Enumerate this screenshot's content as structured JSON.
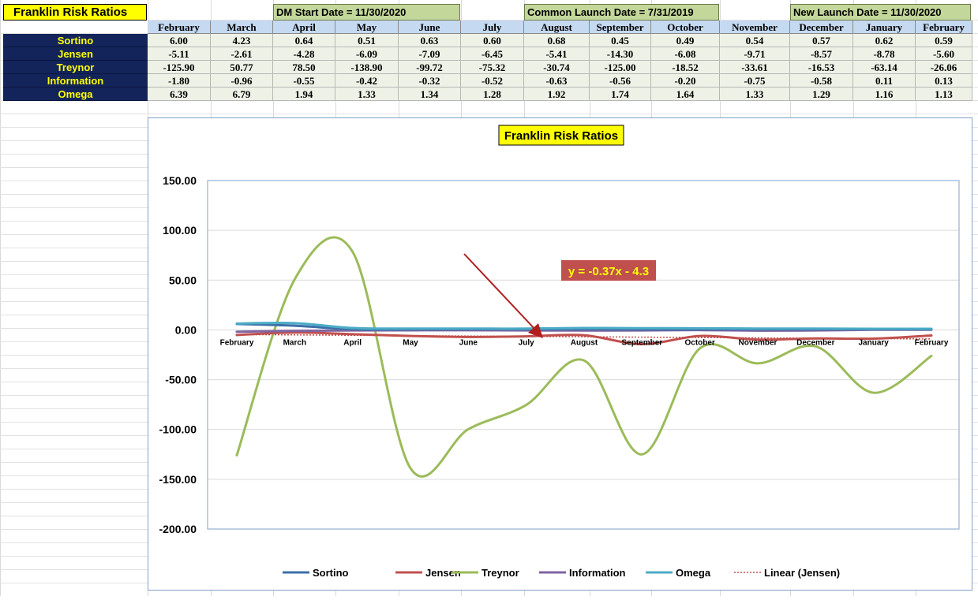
{
  "sheet": {
    "title": "Franklin Risk Ratios",
    "dm_start": "DM Start Date = 11/30/2020",
    "common_launch": "Common Launch Date = 7/31/2019",
    "new_launch": "New Launch Date = 11/30/2020",
    "months": [
      "February",
      "March",
      "April",
      "May",
      "June",
      "July",
      "August",
      "September",
      "October",
      "November",
      "December",
      "January",
      "February"
    ],
    "rows": [
      {
        "label": "Sortino",
        "values": [
          "6.00",
          "4.23",
          "0.64",
          "0.51",
          "0.63",
          "0.60",
          "0.68",
          "0.45",
          "0.49",
          "0.54",
          "0.57",
          "0.62",
          "0.59"
        ]
      },
      {
        "label": "Jensen",
        "values": [
          "-5.11",
          "-2.61",
          "-4.28",
          "-6.09",
          "-7.09",
          "-6.45",
          "-5.41",
          "-14.30",
          "-6.08",
          "-9.71",
          "-8.57",
          "-8.78",
          "-5.60"
        ]
      },
      {
        "label": "Treynor",
        "values": [
          "-125.90",
          "50.77",
          "78.50",
          "-138.90",
          "-99.72",
          "-75.32",
          "-30.74",
          "-125.00",
          "-18.52",
          "-33.61",
          "-16.53",
          "-63.14",
          "-26.06"
        ]
      },
      {
        "label": "Information",
        "values": [
          "-1.80",
          "-0.96",
          "-0.55",
          "-0.42",
          "-0.32",
          "-0.52",
          "-0.63",
          "-0.56",
          "-0.20",
          "-0.75",
          "-0.58",
          "0.11",
          "0.13"
        ]
      },
      {
        "label": "Omega",
        "values": [
          "6.39",
          "6.79",
          "1.94",
          "1.33",
          "1.34",
          "1.28",
          "1.92",
          "1.74",
          "1.64",
          "1.33",
          "1.29",
          "1.16",
          "1.13"
        ]
      }
    ]
  },
  "chart_data": {
    "type": "line",
    "title": "Franklin Risk Ratios",
    "categories": [
      "February",
      "March",
      "April",
      "May",
      "June",
      "July",
      "August",
      "September",
      "October",
      "November",
      "December",
      "January",
      "February"
    ],
    "ylim": [
      -200,
      150
    ],
    "yticks": [
      "150.00",
      "100.00",
      "50.00",
      "0.00",
      "-50.00",
      "-100.00",
      "-150.00",
      "-200.00"
    ],
    "grid": true,
    "legend_position": "bottom",
    "series": [
      {
        "name": "Sortino",
        "color": "#3d6fa8",
        "values": [
          6.0,
          4.23,
          0.64,
          0.51,
          0.63,
          0.6,
          0.68,
          0.45,
          0.49,
          0.54,
          0.57,
          0.62,
          0.59
        ]
      },
      {
        "name": "Jensen",
        "color": "#c0504d",
        "values": [
          -5.11,
          -2.61,
          -4.28,
          -6.09,
          -7.09,
          -6.45,
          -5.41,
          -14.3,
          -6.08,
          -9.71,
          -8.57,
          -8.78,
          -5.6
        ]
      },
      {
        "name": "Treynor",
        "color": "#9bbb59",
        "values": [
          -125.9,
          50.77,
          78.5,
          -138.9,
          -99.72,
          -75.32,
          -30.74,
          -125.0,
          -18.52,
          -33.61,
          -16.53,
          -63.14,
          -26.06
        ]
      },
      {
        "name": "Information",
        "color": "#8064a2",
        "values": [
          -1.8,
          -0.96,
          -0.55,
          -0.42,
          -0.32,
          -0.52,
          -0.63,
          -0.56,
          -0.2,
          -0.75,
          -0.58,
          0.11,
          0.13
        ]
      },
      {
        "name": "Omega",
        "color": "#4bacc6",
        "values": [
          6.39,
          6.79,
          1.94,
          1.33,
          1.34,
          1.28,
          1.92,
          1.74,
          1.64,
          1.33,
          1.29,
          1.16,
          1.13
        ]
      }
    ],
    "trendline": {
      "name": "Linear (Jensen)",
      "color": "#c0504d",
      "slope": -0.37,
      "intercept": -4.3
    },
    "annotation": {
      "text": "y = -0.37x - 4.3",
      "bg": "#c0504d",
      "color": "#ffff00"
    }
  }
}
